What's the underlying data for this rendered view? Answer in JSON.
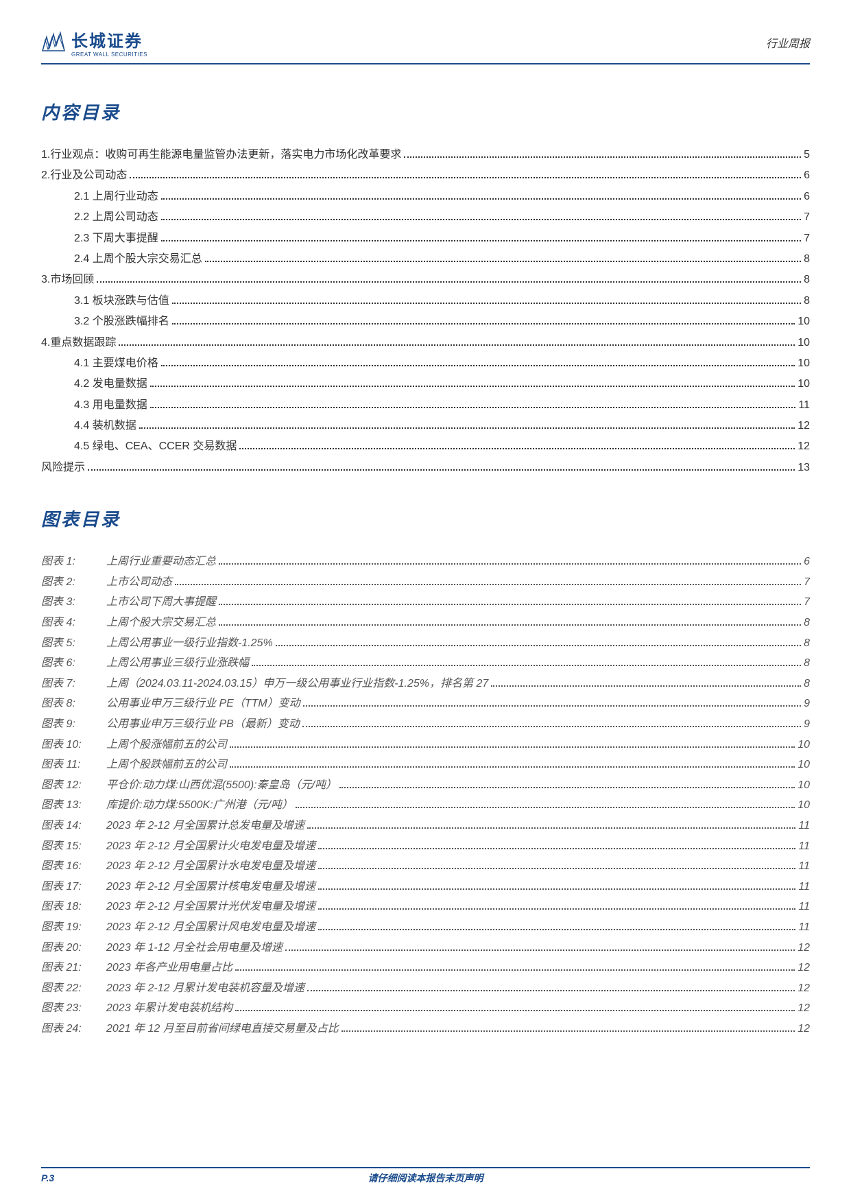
{
  "header": {
    "logo_cn": "长城证券",
    "logo_en": "GREAT WALL SECURITIES",
    "right_text": "行业周报"
  },
  "toc_title": "内容目录",
  "toc_entries": [
    {
      "label": "1.行业观点：收购可再生能源电量监管办法更新，落实电力市场化改革要求",
      "page": "5",
      "indent": 0
    },
    {
      "label": "2.行业及公司动态",
      "page": "6",
      "indent": 0
    },
    {
      "label": "2.1 上周行业动态",
      "page": "6",
      "indent": 1
    },
    {
      "label": "2.2 上周公司动态",
      "page": "7",
      "indent": 1
    },
    {
      "label": "2.3 下周大事提醒",
      "page": "7",
      "indent": 1
    },
    {
      "label": "2.4 上周个股大宗交易汇总",
      "page": "8",
      "indent": 1
    },
    {
      "label": "3.市场回顾",
      "page": "8",
      "indent": 0
    },
    {
      "label": "3.1 板块涨跌与估值",
      "page": "8",
      "indent": 1
    },
    {
      "label": "3.2 个股涨跌幅排名",
      "page": "10",
      "indent": 1
    },
    {
      "label": "4.重点数据跟踪",
      "page": "10",
      "indent": 0
    },
    {
      "label": "4.1 主要煤电价格",
      "page": "10",
      "indent": 1
    },
    {
      "label": "4.2 发电量数据",
      "page": "10",
      "indent": 1
    },
    {
      "label": "4.3 用电量数据",
      "page": "11",
      "indent": 1
    },
    {
      "label": "4.4 装机数据",
      "page": "12",
      "indent": 1
    },
    {
      "label": "4.5 绿电、CEA、CCER 交易数据",
      "page": "12",
      "indent": 1
    },
    {
      "label": "风险提示",
      "page": "13",
      "indent": 0
    }
  ],
  "figures_title": "图表目录",
  "figures": [
    {
      "num": "图表 1:",
      "label": "上周行业重要动态汇总",
      "page": "6"
    },
    {
      "num": "图表 2:",
      "label": "上市公司动态",
      "page": "7"
    },
    {
      "num": "图表 3:",
      "label": "上市公司下周大事提醒",
      "page": "7"
    },
    {
      "num": "图表 4:",
      "label": "上周个股大宗交易汇总",
      "page": "8"
    },
    {
      "num": "图表 5:",
      "label": "上周公用事业一级行业指数-1.25%",
      "page": "8"
    },
    {
      "num": "图表 6:",
      "label": "上周公用事业三级行业涨跌幅",
      "page": "8"
    },
    {
      "num": "图表 7:",
      "label": "上周（2024.03.11-2024.03.15）申万一级公用事业行业指数-1.25%，排名第 27",
      "page": "8"
    },
    {
      "num": "图表 8:",
      "label": "公用事业申万三级行业 PE（TTM）变动",
      "page": "9"
    },
    {
      "num": "图表 9:",
      "label": "公用事业申万三级行业 PB（最新）变动",
      "page": "9"
    },
    {
      "num": "图表 10:",
      "label": "上周个股涨幅前五的公司",
      "page": "10"
    },
    {
      "num": "图表 11:",
      "label": "上周个股跌幅前五的公司",
      "page": "10"
    },
    {
      "num": "图表 12:",
      "label": "平仓价:动力煤:山西优混(5500):秦皇岛（元/吨）",
      "page": "10"
    },
    {
      "num": "图表 13:",
      "label": "库提价:动力煤:5500K:广州港（元/吨）",
      "page": "10"
    },
    {
      "num": "图表 14:",
      "label": "2023 年 2-12 月全国累计总发电量及增速",
      "page": "11"
    },
    {
      "num": "图表 15:",
      "label": "2023 年 2-12 月全国累计火电发电量及增速",
      "page": "11"
    },
    {
      "num": "图表 16:",
      "label": "2023 年 2-12 月全国累计水电发电量及增速",
      "page": "11"
    },
    {
      "num": "图表 17:",
      "label": "2023 年 2-12 月全国累计核电发电量及增速",
      "page": "11"
    },
    {
      "num": "图表 18:",
      "label": "2023 年 2-12 月全国累计光伏发电量及增速",
      "page": "11"
    },
    {
      "num": "图表 19:",
      "label": "2023 年 2-12 月全国累计风电发电量及增速",
      "page": "11"
    },
    {
      "num": "图表 20:",
      "label": "2023 年 1-12 月全社会用电量及增速",
      "page": "12"
    },
    {
      "num": "图表 21:",
      "label": "2023 年各产业用电量占比",
      "page": "12"
    },
    {
      "num": "图表 22:",
      "label": "2023 年 2-12 月累计发电装机容量及增速",
      "page": "12"
    },
    {
      "num": "图表 23:",
      "label": "2023 年累计发电装机结构",
      "page": "12"
    },
    {
      "num": "图表 24:",
      "label": "2021 年 12 月至目前省间绿电直接交易量及占比",
      "page": "12"
    }
  ],
  "footer": {
    "left": "P.3",
    "center": "请仔细阅读本报告末页声明"
  },
  "colors": {
    "brand": "#1a4b8c",
    "text": "#333333",
    "figure_text": "#555555",
    "background": "#ffffff"
  }
}
